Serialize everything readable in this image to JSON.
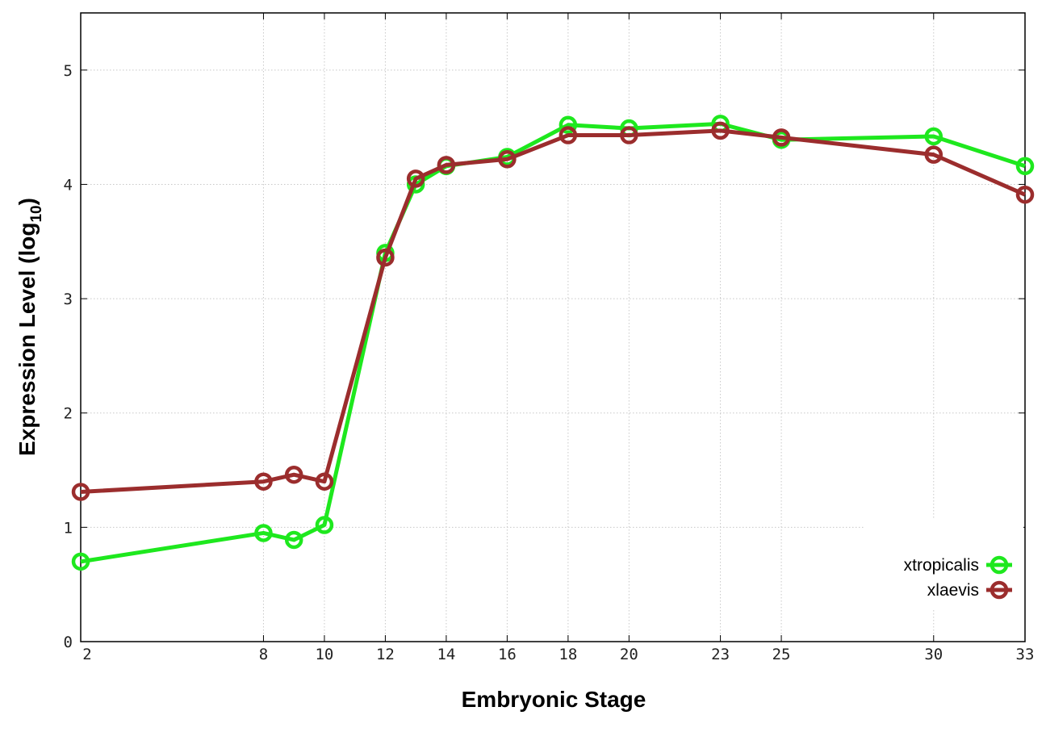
{
  "chart_data": {
    "type": "line",
    "xlabel": "Embryonic Stage",
    "ylabel_main": "Expression Level (log",
    "ylabel_sub": "10",
    "ylabel_close": ")",
    "xlim": [
      2,
      33
    ],
    "ylim": [
      0,
      5.5
    ],
    "x_ticks": [
      2,
      8,
      10,
      12,
      14,
      16,
      18,
      20,
      23,
      25,
      30,
      33
    ],
    "y_ticks": [
      0,
      1,
      2,
      3,
      4,
      5
    ],
    "grid": true,
    "legend_position": "bottom-right",
    "series": [
      {
        "name": "xtropicalis",
        "color": "#1ee81e",
        "x": [
          2,
          8,
          9,
          10,
          12,
          13,
          14,
          16,
          18,
          20,
          23,
          25,
          30,
          33
        ],
        "y": [
          0.7,
          0.95,
          0.89,
          1.02,
          3.4,
          4.0,
          4.16,
          4.24,
          4.52,
          4.49,
          4.53,
          4.39,
          4.42,
          4.16
        ]
      },
      {
        "name": "xlaevis",
        "color": "#9b2d2d",
        "x": [
          2,
          8,
          9,
          10,
          12,
          13,
          14,
          16,
          18,
          20,
          23,
          25,
          30,
          33
        ],
        "y": [
          1.31,
          1.4,
          1.46,
          1.4,
          3.36,
          4.05,
          4.17,
          4.22,
          4.43,
          4.43,
          4.47,
          4.41,
          4.26,
          3.91
        ]
      }
    ]
  }
}
